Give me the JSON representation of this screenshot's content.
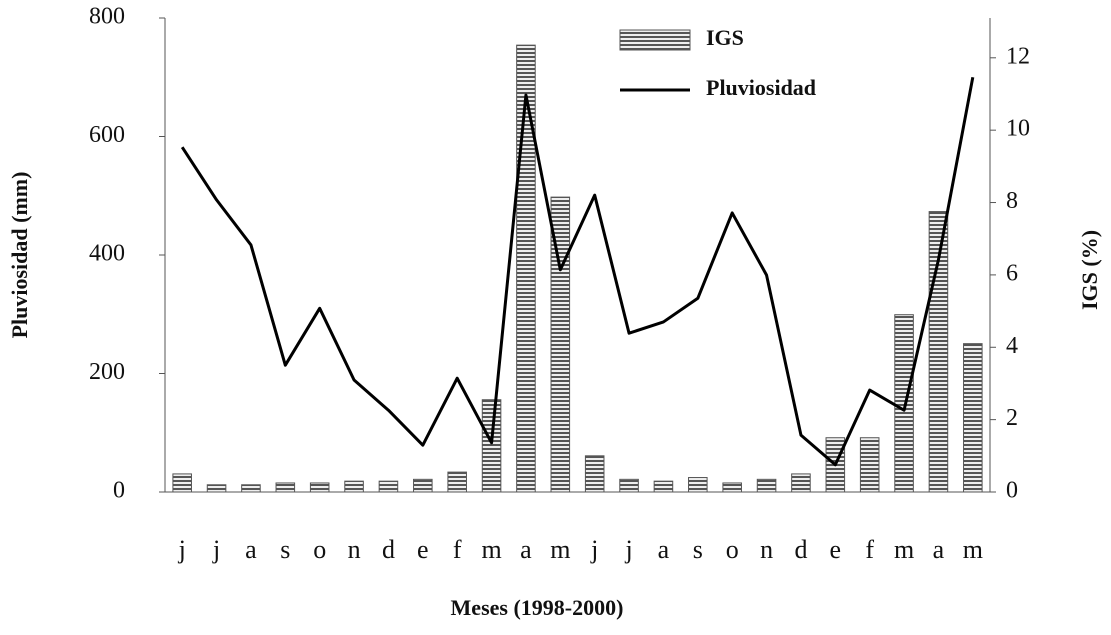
{
  "chart_data": {
    "type": "combo",
    "x_label": "Meses (1998-2000)",
    "y_label": "Pluviosidad (mm)",
    "y2_label": "IGS (%)",
    "categories": [
      "j",
      "j",
      "a",
      "s",
      "o",
      "n",
      "d",
      "e",
      "f",
      "m",
      "a",
      "m",
      "j",
      "j",
      "a",
      "s",
      "o",
      "n",
      "d",
      "e",
      "f",
      "m",
      "a",
      "m"
    ],
    "series": [
      {
        "name": "IGS",
        "type": "bar",
        "axis": "y2",
        "color": "#555555",
        "values": [
          0.5,
          0.2,
          0.2,
          0.25,
          0.25,
          0.3,
          0.3,
          0.35,
          0.55,
          2.55,
          12.35,
          8.15,
          1.0,
          0.35,
          0.3,
          0.4,
          0.25,
          0.35,
          0.5,
          1.5,
          1.5,
          4.9,
          7.75,
          4.1
        ]
      },
      {
        "name": "Pluviosidad",
        "type": "line",
        "color": "#000000",
        "values": [
          582,
          493,
          417,
          214,
          310,
          189,
          138,
          79,
          192,
          83,
          670,
          375,
          501,
          268,
          287,
          327,
          471,
          366,
          96,
          46,
          172,
          138,
          392,
          700
        ]
      }
    ],
    "ylim": [
      0,
      800
    ],
    "yticks": [
      0,
      200,
      400,
      600,
      800
    ],
    "y2lim": [
      0,
      13.1
    ],
    "y2ticks": [
      0,
      2,
      4,
      6,
      8,
      10,
      12
    ],
    "legend": "upper center"
  }
}
